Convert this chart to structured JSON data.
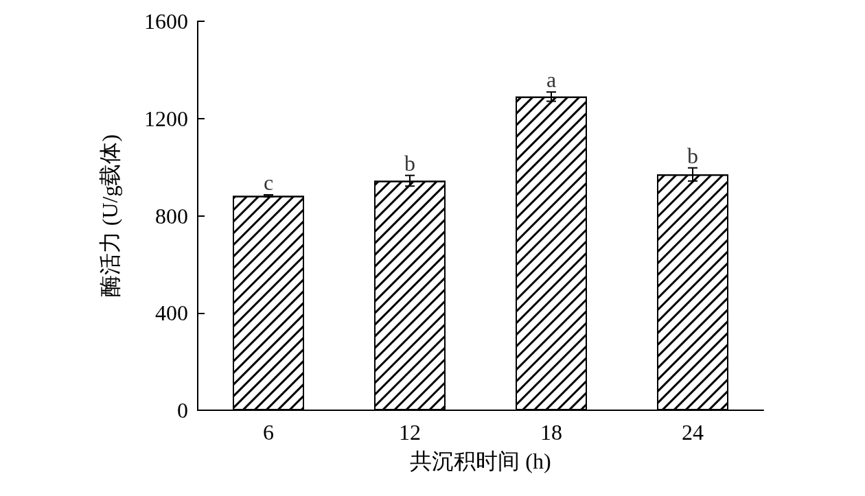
{
  "chart_data": {
    "type": "bar",
    "xlabel": "共沉积时间 (h)",
    "ylabel": "酶活力 (U/g载体)",
    "categories": [
      "6",
      "12",
      "18",
      "24"
    ],
    "values": [
      882,
      944,
      1290,
      970
    ],
    "errors": [
      4,
      22,
      19,
      27
    ],
    "color": "#ffffff",
    "ylim": [
      0,
      1600
    ],
    "yticks": [
      0,
      400,
      800,
      1200,
      1600
    ],
    "grid": false,
    "annotations": [
      "c",
      "b",
      "a",
      "b"
    ]
  }
}
